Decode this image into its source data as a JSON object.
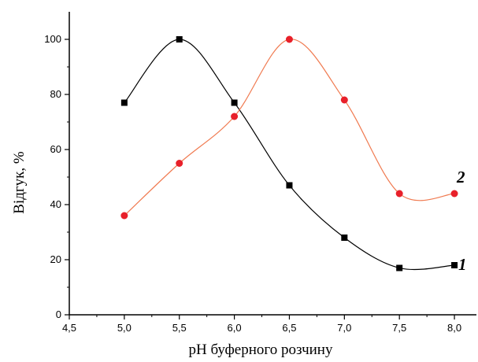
{
  "chart_data": {
    "type": "line",
    "xlabel": "pH буферного розчину",
    "ylabel": "Відгук, %",
    "xlim": [
      4.5,
      8.2
    ],
    "ylim": [
      0,
      110
    ],
    "xticks": [
      "4,5",
      "5,0",
      "5,5",
      "6,0",
      "6,5",
      "7,0",
      "7,5",
      "8,0"
    ],
    "yticks": [
      "0",
      "20",
      "40",
      "60",
      "80",
      "100"
    ],
    "grid": false,
    "series": [
      {
        "name": "1",
        "marker": "square",
        "color": "#000000",
        "line_color": "#000000",
        "x": [
          5.0,
          5.5,
          6.0,
          6.5,
          7.0,
          7.5,
          8.0
        ],
        "y": [
          77,
          100,
          77,
          47,
          28,
          17,
          18
        ]
      },
      {
        "name": "2",
        "marker": "circle",
        "color": "#e8202a",
        "line_color": "#f07a50",
        "x": [
          5.0,
          5.5,
          6.0,
          6.5,
          7.0,
          7.5,
          8.0
        ],
        "y": [
          36,
          55,
          72,
          100,
          78,
          44,
          44
        ]
      }
    ]
  }
}
